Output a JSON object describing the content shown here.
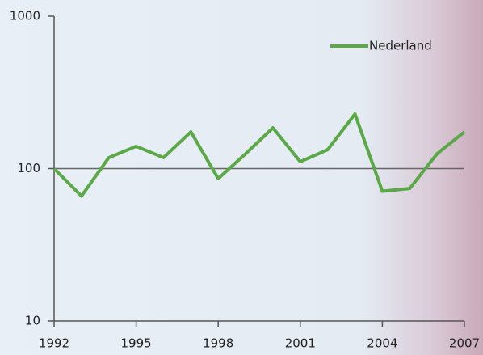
{
  "chart_data": {
    "type": "line",
    "x": [
      1992,
      1993,
      1994,
      1995,
      1996,
      1997,
      1998,
      1999,
      2000,
      2001,
      2002,
      2003,
      2004,
      2005,
      2006,
      2007
    ],
    "series": [
      {
        "name": "Nederland",
        "color": "#5aa846",
        "values": [
          100,
          66,
          118,
          140,
          118,
          174,
          86,
          125,
          185,
          111,
          133,
          228,
          71,
          74,
          125,
          174
        ]
      }
    ],
    "xlim": [
      1992,
      2007
    ],
    "xticks": [
      1992,
      1995,
      1998,
      2001,
      2004,
      2007
    ],
    "ylim": [
      10,
      1000
    ],
    "yticks": [
      10,
      100,
      1000
    ],
    "log_y": true,
    "grid": true,
    "legend": "upper-right"
  }
}
